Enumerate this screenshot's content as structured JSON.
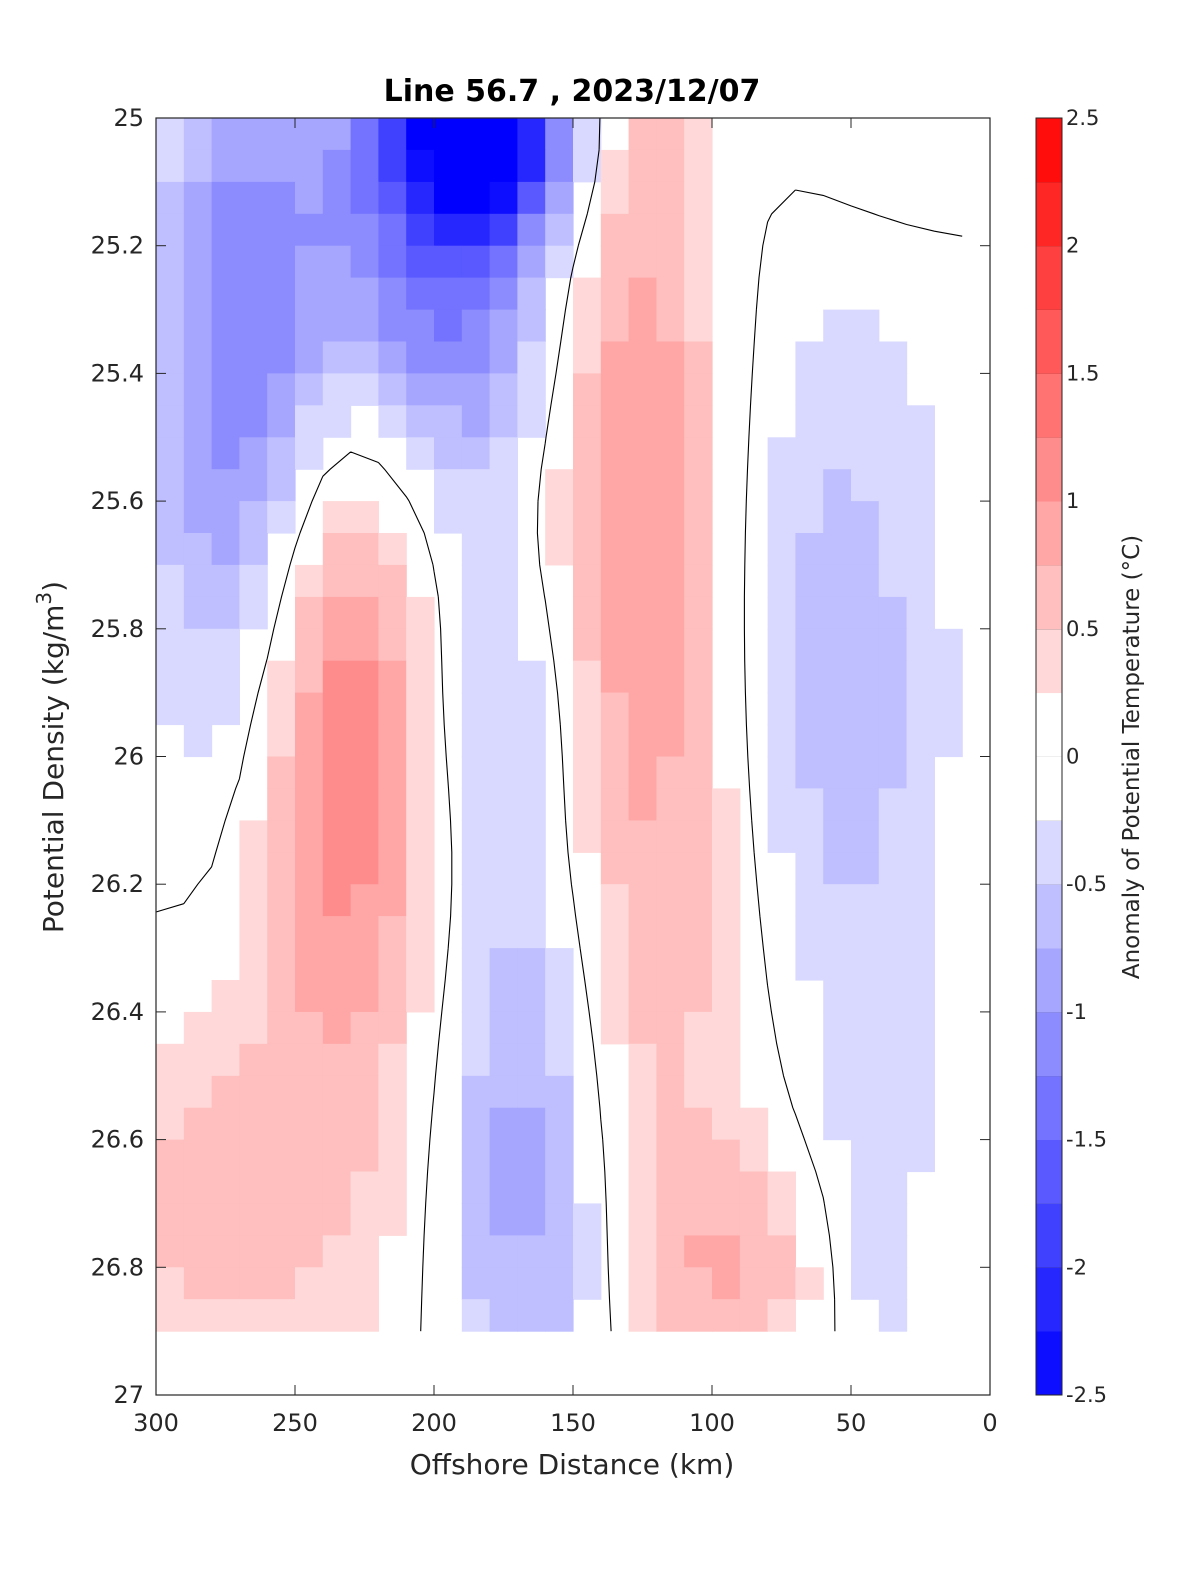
{
  "chart_data": {
    "type": "heatmap",
    "title": "Line 56.7 , 2023/12/07",
    "xlabel": "Offshore Distance (km)",
    "ylabel_main": "Potential Density (kg/m",
    "ylabel_sup": "3",
    "ylabel_end": ")",
    "xlim": [
      300,
      0
    ],
    "ylim": [
      25,
      27
    ],
    "x_reversed": true,
    "y_reversed": true,
    "x_ticks": [
      300,
      250,
      200,
      150,
      100,
      50,
      0
    ],
    "x_tick_labels": [
      "300",
      "250",
      "200",
      "150",
      "100",
      "50",
      "0"
    ],
    "y_ticks": [
      25,
      25.2,
      25.4,
      25.6,
      25.8,
      26,
      26.2,
      26.4,
      26.6,
      26.8,
      27
    ],
    "y_tick_labels": [
      "25",
      "25.2",
      "25.4",
      "25.6",
      "25.8",
      "26",
      "26.2",
      "26.4",
      "26.6",
      "26.8",
      "27"
    ],
    "colorbar": {
      "label": "Anomaly of Potential Temperature (°C)",
      "range": [
        -2.5,
        2.5
      ],
      "step": 0.25,
      "ticks": [
        2.5,
        2,
        1.5,
        1,
        0.5,
        0,
        -0.5,
        -1,
        -1.5,
        -2,
        -2.5
      ],
      "tick_labels": [
        "2.5",
        "2",
        "1.5",
        "1",
        "0.5",
        "0",
        "-0.5",
        "-1",
        "-1.5",
        "-2",
        "-2.5"
      ],
      "color_min": "#0000ff",
      "color_max": "#ff0000"
    },
    "cell_size": {
      "dx": 10,
      "dy": 0.05
    },
    "data_extent": {
      "x_max": 300,
      "x_min": 15,
      "y_bottom": 26.9
    },
    "zero_contour": "black",
    "features": [
      {
        "kind": "cold",
        "x": 270,
        "y": 25.45,
        "peak": -1.3
      },
      {
        "kind": "cold",
        "x": 182,
        "y": 25.02,
        "peak": -2.3
      },
      {
        "kind": "cold",
        "x": 195,
        "y": 25.2,
        "peak": -1.6
      },
      {
        "kind": "cold",
        "x": 167,
        "y": 26.6,
        "peak": -1.0
      },
      {
        "kind": "cold",
        "x": 55,
        "y": 25.9,
        "peak": -0.7
      },
      {
        "kind": "cold",
        "x": 40,
        "y": 26.7,
        "peak": -0.45
      },
      {
        "kind": "warm",
        "x": 232,
        "y": 25.88,
        "peak": 1.2
      },
      {
        "kind": "warm",
        "x": 132,
        "y": 25.45,
        "peak": 1.1
      },
      {
        "kind": "warm",
        "x": 285,
        "y": 26.7,
        "peak": 0.6
      },
      {
        "kind": "warm",
        "x": 90,
        "y": 26.8,
        "peak": 0.6
      },
      {
        "kind": "warm",
        "x": 35,
        "y": 25.05,
        "peak": 0.35
      }
    ]
  }
}
